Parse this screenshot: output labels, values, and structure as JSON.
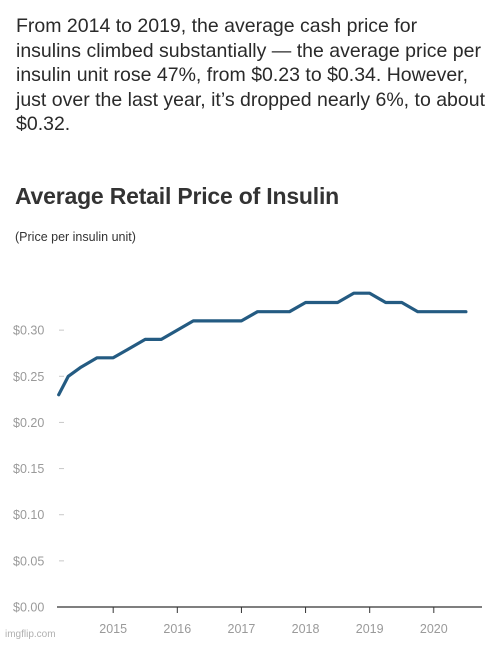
{
  "intro_text": "From 2014 to 2019, the average cash price for insulins climbed substantially — the average price per insulin unit rose 47%, from $0.23 to $0.34. However, just over the last year, it’s dropped nearly 6%, to about $0.32.",
  "watermark": "imgflip.com",
  "chart_data": {
    "type": "line",
    "title": "Average Retail Price of Insulin",
    "subtitle": "(Price per insulin unit)",
    "xlabel": "",
    "ylabel": "",
    "x_ticks": [
      "2015",
      "2016",
      "2017",
      "2018",
      "2019",
      "2020"
    ],
    "y_ticks": [
      "$0.00",
      "$0.05",
      "$0.10",
      "$0.15",
      "$0.20",
      "$0.25",
      "$0.30"
    ],
    "ylim": [
      0,
      0.35
    ],
    "xlim": [
      2014.28,
      2020.72
    ],
    "grid": false,
    "series_color": "#245b82",
    "series": [
      {
        "x": [
          2014.15,
          2014.3,
          2014.5,
          2014.75,
          2015.0,
          2015.25,
          2015.5,
          2015.75,
          2016.0,
          2016.25,
          2016.5,
          2016.75,
          2017.0,
          2017.25,
          2017.5,
          2017.75,
          2018.0,
          2018.25,
          2018.5,
          2018.75,
          2019.0,
          2019.25,
          2019.5,
          2019.75,
          2020.0,
          2020.25,
          2020.5
        ],
        "values": [
          0.23,
          0.25,
          0.26,
          0.27,
          0.27,
          0.28,
          0.29,
          0.29,
          0.3,
          0.31,
          0.31,
          0.31,
          0.31,
          0.32,
          0.32,
          0.32,
          0.33,
          0.33,
          0.33,
          0.34,
          0.34,
          0.33,
          0.33,
          0.32,
          0.32,
          0.32,
          0.32
        ]
      }
    ]
  }
}
